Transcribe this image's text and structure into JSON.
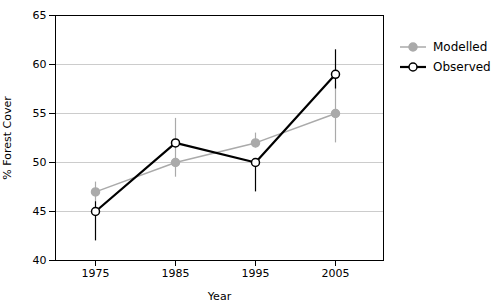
{
  "chart_data": {
    "type": "line",
    "xlabel": "Year",
    "ylabel": "% Forest Cover",
    "x": [
      1975,
      1985,
      1995,
      2005
    ],
    "series": [
      {
        "name": "Modelled",
        "color": "#aaaaaa",
        "marker": "o",
        "values": [
          47,
          50,
          52,
          55
        ],
        "yerr_lower": [
          1,
          1.5,
          0.5,
          3
        ],
        "yerr_upper": [
          1,
          4.5,
          1,
          3
        ]
      },
      {
        "name": "Observed",
        "color": "#000000",
        "marker": "o",
        "values": [
          45,
          52,
          50,
          59
        ],
        "yerr_lower": [
          3,
          0,
          3,
          1.5
        ],
        "yerr_upper": [
          1,
          0,
          0,
          2.5
        ]
      }
    ],
    "xlim": [
      1970,
      2011
    ],
    "xticks": [
      1975,
      1985,
      1995,
      2005
    ],
    "ylim": [
      40,
      65
    ],
    "yticks": [
      40,
      45,
      50,
      55,
      60,
      65
    ],
    "grid": "y",
    "legend": "right"
  }
}
